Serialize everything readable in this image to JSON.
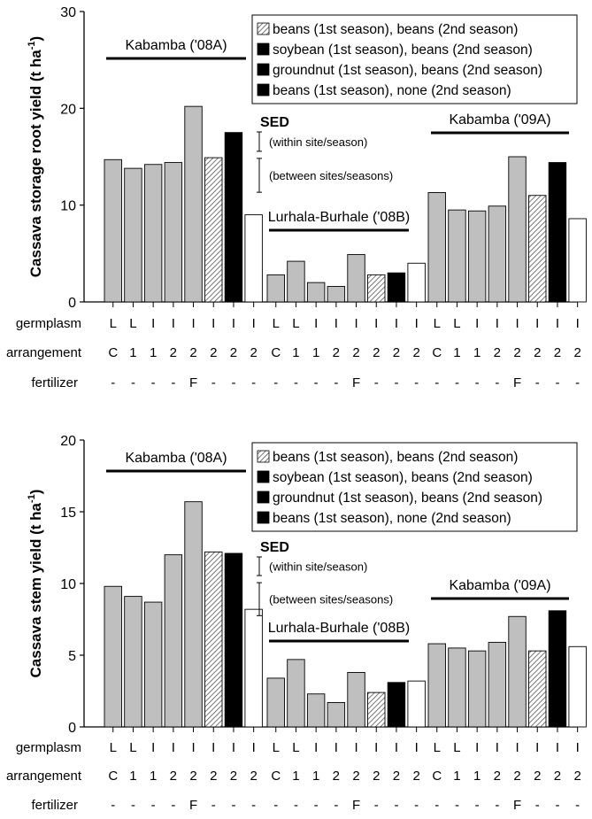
{
  "legend": [
    {
      "label": "beans (1st season), beans (2nd season)",
      "fill": "hatch"
    },
    {
      "label": "soybean (1st season), beans (2nd season)",
      "fill": "#ffffff"
    },
    {
      "label": "groundnut (1st season), beans (2nd season)",
      "fill": "#000000"
    },
    {
      "label": "beans (1st season), none (2nd season)",
      "fill": "#bfbfbf"
    }
  ],
  "colors": {
    "gray": "#bfbfbf",
    "white": "#ffffff",
    "black": "#000000",
    "hatch": "hatch"
  },
  "bar_fills": [
    "gray",
    "gray",
    "gray",
    "gray",
    "gray",
    "hatch",
    "black",
    "white"
  ],
  "row_labels": [
    "germplasm",
    "arrangement",
    "fertilizer"
  ],
  "germplasm": [
    "L",
    "L",
    "I",
    "I",
    "I",
    "I",
    "I",
    "I"
  ],
  "arrangement": [
    "C",
    "1",
    "1",
    "2",
    "2",
    "2",
    "2",
    "2"
  ],
  "fertilizer": [
    "-",
    "-",
    "-",
    "-",
    "F",
    "-",
    "-",
    "-"
  ],
  "sed": {
    "title": "SED",
    "within": "(within site/season)",
    "between": "(between sites/seasons)"
  },
  "chart_data": [
    {
      "type": "bar",
      "ylabel": "Cassava storage root yield (t ha-1)",
      "ylabel_main": "Cassava storage root yield (t ha",
      "ylabel_sup": "-1",
      "ylabel_end": ")",
      "ylim": [
        0,
        30
      ],
      "yticks": [
        "0",
        "10",
        "20",
        "30"
      ],
      "sed_within": 2.0,
      "sed_between": 3.5,
      "groups": [
        {
          "name": "Kabamba ('08A)",
          "values": [
            14.7,
            13.8,
            14.2,
            14.4,
            20.2,
            14.9,
            17.5,
            9.0
          ]
        },
        {
          "name": "Lurhala-Burhale ('08B)",
          "values": [
            2.8,
            4.2,
            2.0,
            1.6,
            4.9,
            2.8,
            3.0,
            4.0
          ]
        },
        {
          "name": "Kabamba ('09A)",
          "values": [
            11.3,
            9.5,
            9.4,
            9.9,
            15.0,
            11.0,
            14.4,
            8.6
          ]
        }
      ]
    },
    {
      "type": "bar",
      "ylabel": "Cassava stem yield (t ha-1)",
      "ylabel_main": "Cassava stem yield (t ha",
      "ylabel_sup": "-1",
      "ylabel_end": ")",
      "ylim": [
        0,
        20
      ],
      "yticks": [
        "0",
        "5",
        "10",
        "15",
        "20"
      ],
      "sed_within": 1.3,
      "sed_between": 2.3,
      "groups": [
        {
          "name": "Kabamba ('08A)",
          "values": [
            9.8,
            9.1,
            8.7,
            12.0,
            15.7,
            12.2,
            12.1,
            8.2
          ]
        },
        {
          "name": "Lurhala-Burhale ('08B)",
          "values": [
            3.4,
            4.7,
            2.3,
            1.7,
            3.8,
            2.4,
            3.1,
            3.2
          ]
        },
        {
          "name": "Kabamba ('09A)",
          "values": [
            5.8,
            5.5,
            5.3,
            5.9,
            7.7,
            5.3,
            8.1,
            5.6
          ]
        }
      ]
    }
  ]
}
